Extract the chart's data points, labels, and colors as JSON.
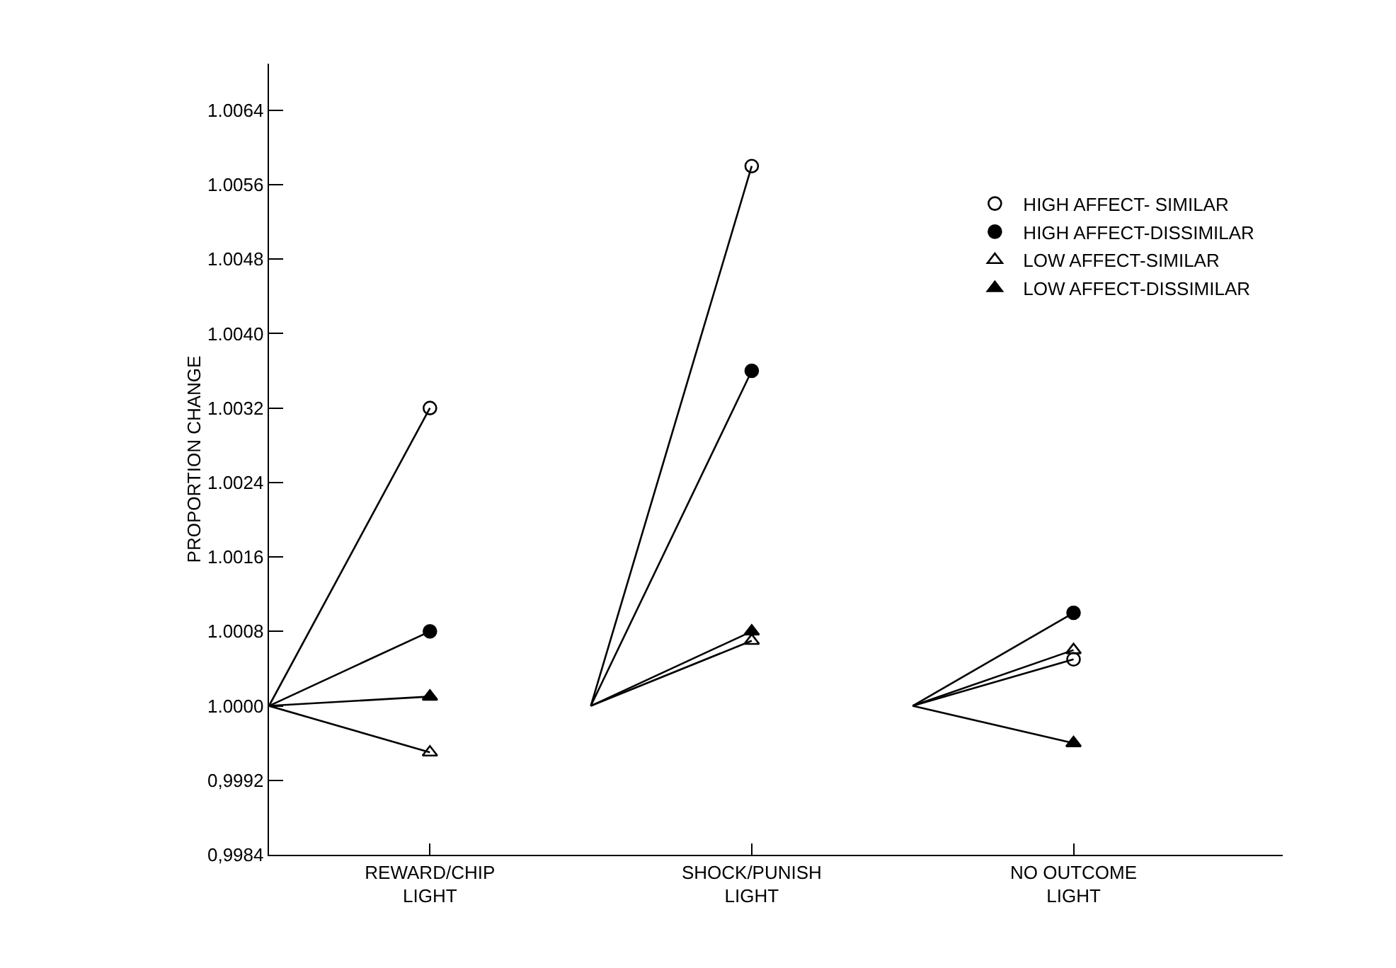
{
  "chart_data": {
    "type": "line",
    "ylabel": "PROPORTION CHANGE",
    "categories": [
      null,
      "REWARD/CHIP\nLIGHT",
      null,
      "SHOCK/PUNISH\nLIGHT",
      null,
      "NO OUTCOME\nLIGHT"
    ],
    "ylim": [
      0.9984,
      1.0069
    ],
    "yticks": [
      {
        "value": 0.9984,
        "label": "0,9984"
      },
      {
        "value": 0.9992,
        "label": "0,9992"
      },
      {
        "value": 1.0,
        "label": "1.0000"
      },
      {
        "value": 1.0008,
        "label": "1.0008"
      },
      {
        "value": 1.0016,
        "label": "1.0016"
      },
      {
        "value": 1.0024,
        "label": "1.0024"
      },
      {
        "value": 1.0032,
        "label": "1.0032"
      },
      {
        "value": 1.004,
        "label": "1.0040"
      },
      {
        "value": 1.0048,
        "label": "1.0048"
      },
      {
        "value": 1.0056,
        "label": "1.0056"
      },
      {
        "value": 1.0064,
        "label": "1.0064"
      }
    ],
    "grid": false,
    "legend": "top right",
    "line_style": "solid",
    "series": [
      {
        "name": "HIGH AFFECT- SIMILAR",
        "color": "#000000",
        "marker": "circle-open",
        "values": [
          1.0,
          1.0032,
          1.0,
          1.0058,
          1.0,
          1.0005
        ]
      },
      {
        "name": "HIGH AFFECT-DISSIMILAR",
        "color": "#000000",
        "marker": "circle",
        "values": [
          1.0,
          1.0008,
          1.0,
          1.0036,
          1.0,
          1.001
        ]
      },
      {
        "name": "LOW AFFECT-SIMILAR",
        "color": "#000000",
        "marker": "triangle-open",
        "values": [
          1.0,
          0.9995,
          1.0,
          1.0007,
          1.0,
          1.0006
        ]
      },
      {
        "name": "LOW AFFECT-DISSIMILAR",
        "color": "#000000",
        "marker": "triangle",
        "values": [
          1.0,
          1.0001,
          1.0,
          1.0008,
          1.0,
          0.9996
        ]
      }
    ]
  }
}
